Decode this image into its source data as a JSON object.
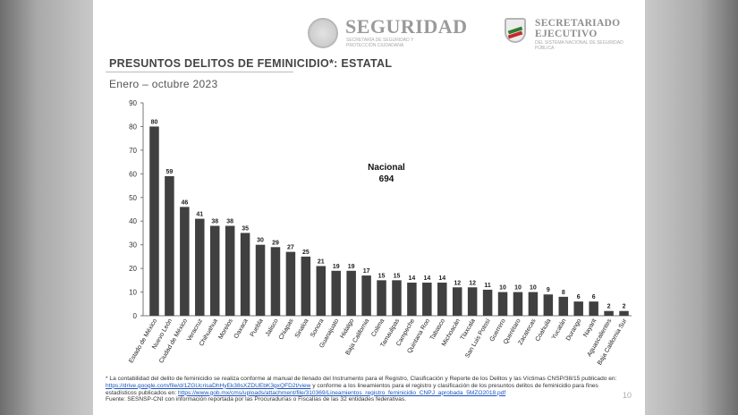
{
  "header": {
    "seguridad_title": "SEGURIDAD",
    "seguridad_sub": "SECRETARÍA DE SEGURIDAD Y PROTECCIÓN CIUDADANA",
    "secretariado_title_1": "SECRETARIADO",
    "secretariado_title_2": "EJECUTIVO",
    "secretariado_sub": "DEL SISTEMA NACIONAL DE SEGURIDAD PÚBLICA"
  },
  "slide": {
    "title": "PRESUNTOS DELITOS DE FEMINICIDIO*: ESTATAL",
    "subtitle": "Enero – octubre 2023",
    "page_number": "10"
  },
  "chart_data": {
    "type": "bar",
    "categories": [
      "Estado de México",
      "Nuevo León",
      "Ciudad de México",
      "Veracruz",
      "Chihuahua",
      "Morelos",
      "Oaxaca",
      "Puebla",
      "Jalisco",
      "Chiapas",
      "Sinaloa",
      "Sonora",
      "Guanajuato",
      "Hidalgo",
      "Baja California",
      "Colima",
      "Tamaulipas",
      "Campeche",
      "Quintana Roo",
      "Tabasco",
      "Michoacán",
      "Tlaxcala",
      "San Luis Potosí",
      "Guerrero",
      "Querétaro",
      "Zacatecas",
      "Coahuila",
      "Yucatán",
      "Durango",
      "Nayarit",
      "Aguascalientes",
      "Baja California Sur"
    ],
    "values": [
      80,
      59,
      46,
      41,
      38,
      38,
      35,
      30,
      29,
      27,
      25,
      21,
      19,
      19,
      17,
      15,
      15,
      14,
      14,
      14,
      12,
      12,
      11,
      10,
      10,
      10,
      9,
      8,
      6,
      6,
      2,
      2
    ],
    "ylim": [
      0,
      90
    ],
    "yticks": [
      0,
      10,
      20,
      30,
      40,
      50,
      60,
      70,
      80,
      90
    ],
    "bar_color": "#404040",
    "grid": false,
    "annotation": {
      "line1": "Nacional",
      "line2": "694"
    }
  },
  "footnote": {
    "part1": "* La contabilidad del delito de feminicidio se realiza conforme al manual de llenado del Instrumento para el Registro, Clasificación y Reporte de los Delitos y las Víctimas CNSP/38/15 publicado en: ",
    "link1": "https://drive.google.com/file/d/1ZGUcrisaDhHyEk38sXZDUEbK3gxQFD2t/view",
    "part2": " y conforme a los lineamientos para el registro y clasificación de los presuntos delitos de feminicidio para fines estadísticos publicados en: ",
    "link2": "https://www.gob.mx/cms/uploads/attachment/file/310369/Lineamientos_registro_feminicidio_CNPJ_aprobada_5MZO2018.pdf",
    "source": "Fuente: SESNSP-CNI con información reportada por las Procuradurías o Fiscalías de las 32 entidades federativas."
  }
}
